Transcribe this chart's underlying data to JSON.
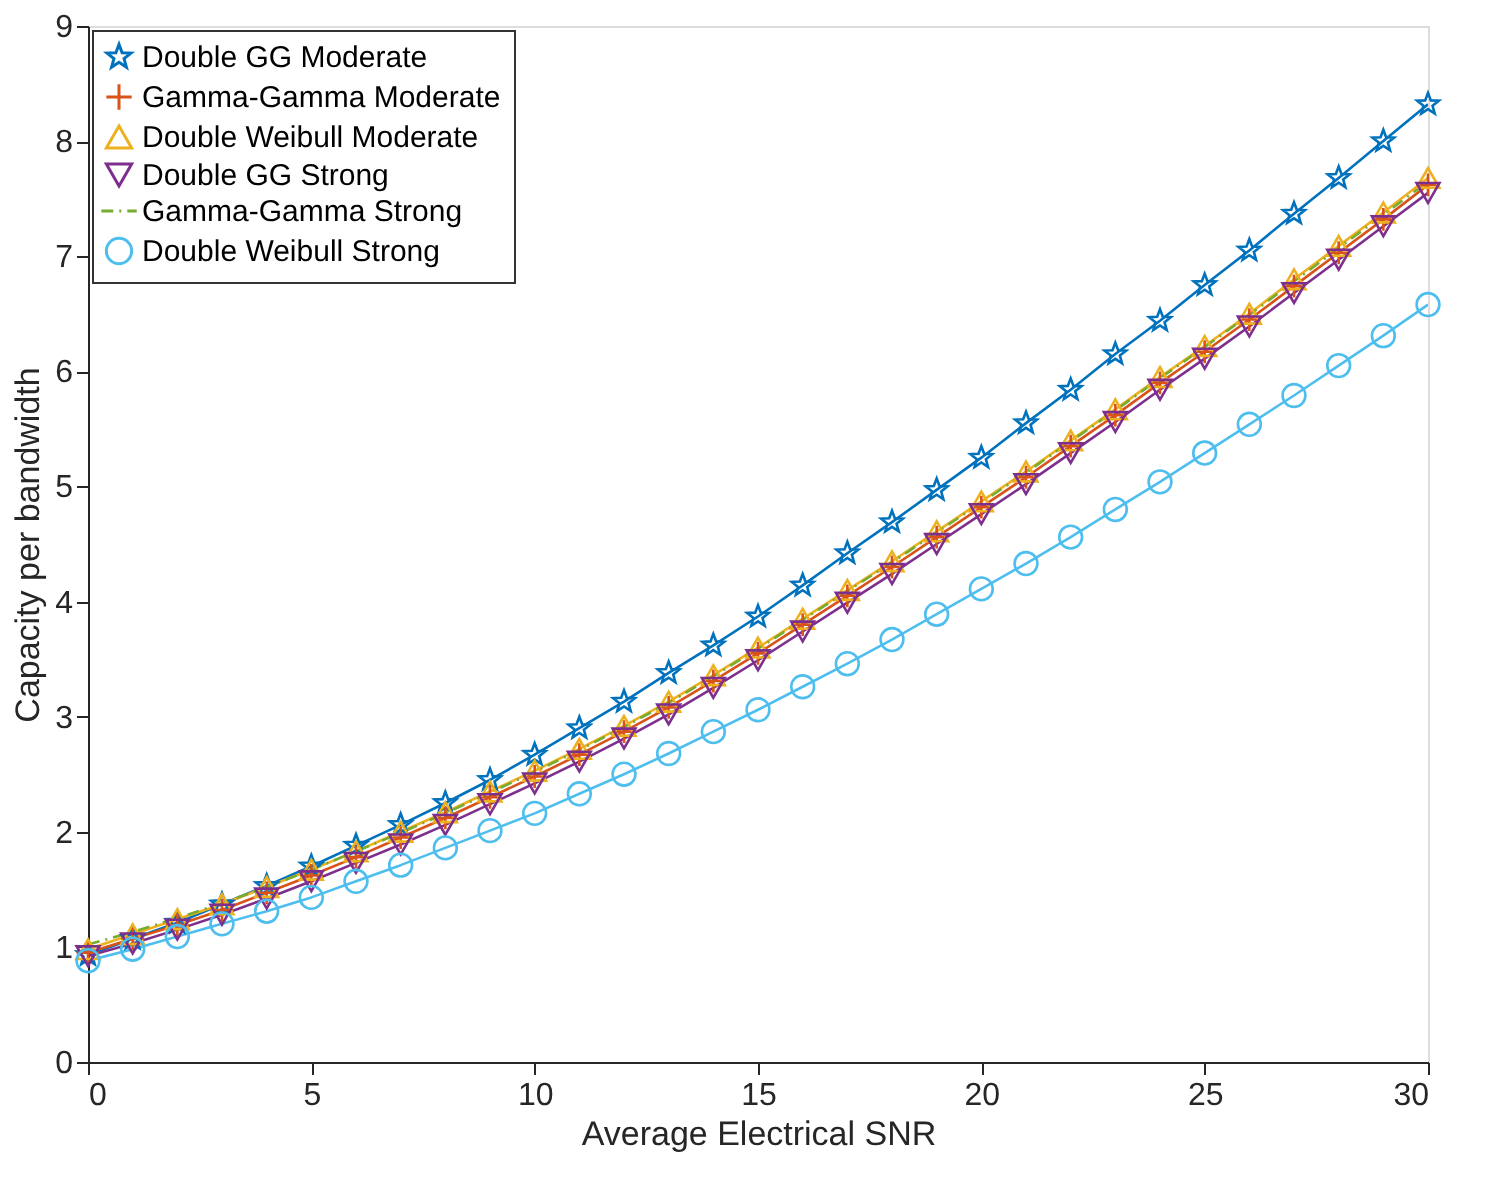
{
  "chart_data": {
    "type": "line",
    "xlabel": "Average Electrical SNR",
    "ylabel": "Capacity per bandwidth",
    "x": [
      0,
      1,
      2,
      3,
      4,
      5,
      6,
      7,
      8,
      9,
      10,
      11,
      12,
      13,
      14,
      15,
      16,
      17,
      18,
      19,
      20,
      21,
      22,
      23,
      24,
      25,
      26,
      27,
      28,
      29,
      30
    ],
    "xlim": [
      0,
      30
    ],
    "xticks": [
      0,
      5,
      10,
      15,
      20,
      25,
      30
    ],
    "ylim": [
      0,
      9
    ],
    "yticks": [
      0,
      1,
      2,
      3,
      4,
      5,
      6,
      7,
      8,
      9
    ],
    "grid": false,
    "legend": "top left",
    "series": [
      {
        "name": "Double GG Moderate",
        "color": "#0072bd",
        "marker": "star",
        "line_style": "solid",
        "values": [
          0.93,
          1.07,
          1.21,
          1.37,
          1.53,
          1.7,
          1.88,
          2.06,
          2.25,
          2.45,
          2.67,
          2.9,
          3.13,
          3.38,
          3.62,
          3.87,
          4.14,
          4.42,
          4.69,
          4.97,
          5.25,
          5.55,
          5.84,
          6.15,
          6.44,
          6.75,
          7.05,
          7.37,
          7.68,
          8.0,
          8.32
        ]
      },
      {
        "name": "Gamma-Gamma Moderate",
        "color": "#d95319",
        "marker": "cross",
        "line_style": "solid",
        "values": [
          0.95,
          1.07,
          1.19,
          1.32,
          1.47,
          1.62,
          1.78,
          1.95,
          2.12,
          2.3,
          2.48,
          2.67,
          2.87,
          3.08,
          3.31,
          3.55,
          3.8,
          4.05,
          4.3,
          4.56,
          4.82,
          5.08,
          5.35,
          5.62,
          5.9,
          6.17,
          6.45,
          6.74,
          7.03,
          7.32,
          7.62
        ]
      },
      {
        "name": "Double Weibull Moderate",
        "color": "#edb120",
        "marker": "triangle",
        "line_style": "solid",
        "values": [
          0.98,
          1.11,
          1.24,
          1.37,
          1.52,
          1.67,
          1.83,
          2.0,
          2.17,
          2.35,
          2.53,
          2.72,
          2.92,
          3.13,
          3.36,
          3.6,
          3.85,
          4.1,
          4.35,
          4.61,
          4.87,
          5.13,
          5.4,
          5.67,
          5.95,
          6.22,
          6.5,
          6.8,
          7.09,
          7.38,
          7.68
        ]
      },
      {
        "name": "Double GG Strong",
        "color": "#7e2f8e",
        "marker": "triangle-down",
        "line_style": "solid",
        "values": [
          0.92,
          1.03,
          1.15,
          1.28,
          1.42,
          1.57,
          1.73,
          1.89,
          2.06,
          2.24,
          2.42,
          2.61,
          2.81,
          3.02,
          3.25,
          3.49,
          3.74,
          3.99,
          4.24,
          4.5,
          4.76,
          5.02,
          5.29,
          5.56,
          5.84,
          6.11,
          6.39,
          6.68,
          6.97,
          7.26,
          7.55
        ]
      },
      {
        "name": "Gamma-Gamma Strong",
        "color": "#77ac30",
        "marker": "none",
        "line_style": "dashdot",
        "values": [
          1.02,
          1.13,
          1.25,
          1.38,
          1.52,
          1.67,
          1.83,
          1.99,
          2.16,
          2.34,
          2.52,
          2.71,
          2.91,
          3.12,
          3.35,
          3.59,
          3.84,
          4.09,
          4.34,
          4.6,
          4.86,
          5.12,
          5.39,
          5.66,
          5.94,
          6.21,
          6.49,
          6.78,
          7.07,
          7.36,
          7.65
        ]
      },
      {
        "name": "Double Weibull Strong",
        "color": "#4dbeee",
        "marker": "circle",
        "line_style": "solid",
        "values": [
          0.88,
          0.98,
          1.09,
          1.2,
          1.31,
          1.43,
          1.57,
          1.71,
          1.86,
          2.01,
          2.16,
          2.33,
          2.5,
          2.68,
          2.87,
          3.06,
          3.26,
          3.46,
          3.67,
          3.89,
          4.11,
          4.33,
          4.56,
          4.8,
          5.04,
          5.29,
          5.54,
          5.79,
          6.05,
          6.31,
          6.58
        ]
      }
    ]
  }
}
